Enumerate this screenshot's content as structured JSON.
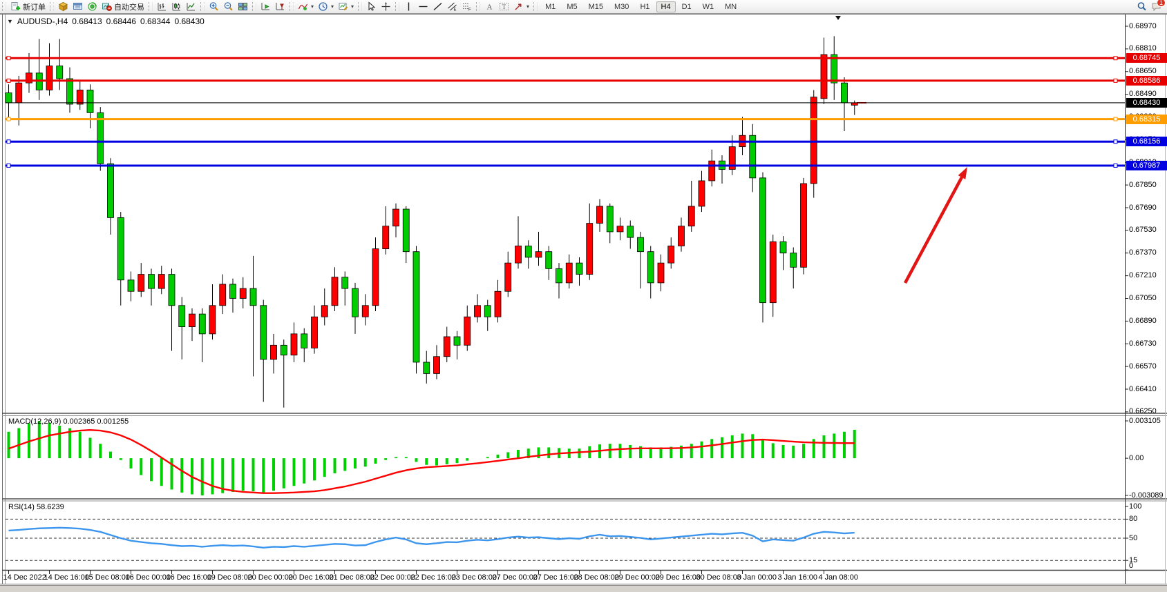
{
  "toolbar": {
    "new_order_label": "新订单",
    "auto_trading_label": "自动交易",
    "timeframes": [
      "M1",
      "M5",
      "M15",
      "M30",
      "H1",
      "H4",
      "D1",
      "W1",
      "MN"
    ],
    "active_timeframe": "H4",
    "notification_badge": "1"
  },
  "chart_header": {
    "symbol": "AUDUSD-,H4",
    "open": "0.68413",
    "high": "0.68446",
    "low": "0.68344",
    "close": "0.68430"
  },
  "price_axis": {
    "ticks": [
      "0.68970",
      "0.68810",
      "0.68650",
      "0.68490",
      "0.68330",
      "0.68170",
      "0.68010",
      "0.67850",
      "0.67690",
      "0.67530",
      "0.67370",
      "0.67210",
      "0.67050",
      "0.66890",
      "0.66730",
      "0.66570",
      "0.66410",
      "0.66250"
    ]
  },
  "time_axis": {
    "labels": [
      "14 Dec 2022",
      "14 Dec 16:00",
      "15 Dec 08:00",
      "16 Dec 00:00",
      "16 Dec 16:00",
      "19 Dec 08:00",
      "20 Dec 00:00",
      "20 Dec 16:00",
      "21 Dec 08:00",
      "22 Dec 00:00",
      "22 Dec 16:00",
      "23 Dec 08:00",
      "27 Dec 00:00",
      "27 Dec 16:00",
      "28 Dec 08:00",
      "29 Dec 00:00",
      "29 Dec 16:00",
      "30 Dec 08:00",
      "3 Jan 00:00",
      "3 Jan 16:00",
      "4 Jan 08:00"
    ]
  },
  "hlines": [
    {
      "label": "0.68745",
      "value": 0.68745,
      "color": "#e80000",
      "kind": "resistance"
    },
    {
      "label": "0.68586",
      "value": 0.68586,
      "color": "#e80000",
      "kind": "resistance"
    },
    {
      "label": "0.68430",
      "value": 0.6843,
      "color": "#000000",
      "kind": "current-price"
    },
    {
      "label": "0.68315",
      "value": 0.68315,
      "color": "#ff9c00",
      "kind": "level"
    },
    {
      "label": "0.68156",
      "value": 0.68156,
      "color": "#0000e0",
      "kind": "support"
    },
    {
      "label": "0.67987",
      "value": 0.67987,
      "color": "#0000e0",
      "kind": "support"
    }
  ],
  "annotations": {
    "arrow": {
      "color": "#e21414",
      "direction": "up-right"
    }
  },
  "indicators": {
    "macd": {
      "label": "MACD(12,26,9)",
      "values": "0.002365 0.001255",
      "axis": [
        "0.003105",
        "0.00",
        "-0.003089"
      ]
    },
    "rsi": {
      "label": "RSI(14)",
      "value": "58.6239",
      "axis": [
        "100",
        "80",
        "50",
        "15",
        "0"
      ]
    }
  },
  "chart_data": {
    "type": "candlestick",
    "symbol": "AUDUSD",
    "timeframe": "H4",
    "title": "AUDUSD-,H4",
    "y_range": [
      0.6625,
      0.6897
    ],
    "grid": false,
    "colors": {
      "up": "#ff0000",
      "down": "#00cd00",
      "wick": "#000000",
      "macd_histogram": "#00d000",
      "macd_signal": "#ff0000",
      "rsi_line": "#3d96ee"
    },
    "x_labels": [
      "14 Dec 2022",
      "14 Dec 16:00",
      "15 Dec 08:00",
      "16 Dec 00:00",
      "16 Dec 16:00",
      "19 Dec 08:00",
      "20 Dec 00:00",
      "20 Dec 16:00",
      "21 Dec 08:00",
      "22 Dec 00:00",
      "22 Dec 16:00",
      "23 Dec 08:00",
      "27 Dec 00:00",
      "27 Dec 16:00",
      "28 Dec 08:00",
      "29 Dec 00:00",
      "29 Dec 16:00",
      "30 Dec 08:00",
      "3 Jan 00:00",
      "3 Jan 16:00",
      "4 Jan 08:00"
    ],
    "candles_per_label": 4,
    "ohlc": [
      [
        0.685,
        0.6856,
        0.683,
        0.6843
      ],
      [
        0.6843,
        0.6862,
        0.6827,
        0.6857
      ],
      [
        0.6857,
        0.6878,
        0.685,
        0.6864
      ],
      [
        0.6864,
        0.6888,
        0.6845,
        0.6852
      ],
      [
        0.6852,
        0.6885,
        0.6848,
        0.6869
      ],
      [
        0.6869,
        0.6888,
        0.6852,
        0.686
      ],
      [
        0.686,
        0.6868,
        0.6836,
        0.6842
      ],
      [
        0.6842,
        0.6858,
        0.6838,
        0.6852
      ],
      [
        0.6852,
        0.6856,
        0.6825,
        0.6836
      ],
      [
        0.6836,
        0.684,
        0.6795,
        0.68
      ],
      [
        0.68,
        0.6804,
        0.675,
        0.6762
      ],
      [
        0.6762,
        0.6766,
        0.67,
        0.6718
      ],
      [
        0.6718,
        0.6724,
        0.6703,
        0.671
      ],
      [
        0.671,
        0.673,
        0.6706,
        0.6722
      ],
      [
        0.6722,
        0.6726,
        0.67,
        0.6712
      ],
      [
        0.6712,
        0.6728,
        0.6708,
        0.6722
      ],
      [
        0.6722,
        0.6726,
        0.6668,
        0.67
      ],
      [
        0.67,
        0.6706,
        0.6662,
        0.6685
      ],
      [
        0.6685,
        0.6698,
        0.6675,
        0.6694
      ],
      [
        0.6694,
        0.6698,
        0.666,
        0.668
      ],
      [
        0.668,
        0.6715,
        0.6676,
        0.67
      ],
      [
        0.67,
        0.6722,
        0.6694,
        0.6715
      ],
      [
        0.6715,
        0.6719,
        0.6695,
        0.6705
      ],
      [
        0.6705,
        0.672,
        0.6698,
        0.6712
      ],
      [
        0.6712,
        0.6735,
        0.665,
        0.67
      ],
      [
        0.67,
        0.6704,
        0.6632,
        0.6662
      ],
      [
        0.6662,
        0.668,
        0.6652,
        0.6672
      ],
      [
        0.6672,
        0.6676,
        0.6628,
        0.6665
      ],
      [
        0.6665,
        0.6688,
        0.666,
        0.668
      ],
      [
        0.668,
        0.6684,
        0.666,
        0.667
      ],
      [
        0.667,
        0.67,
        0.6666,
        0.6692
      ],
      [
        0.6692,
        0.6712,
        0.6686,
        0.67
      ],
      [
        0.67,
        0.6727,
        0.6696,
        0.672
      ],
      [
        0.672,
        0.6724,
        0.67,
        0.6712
      ],
      [
        0.6712,
        0.6716,
        0.668,
        0.6692
      ],
      [
        0.6692,
        0.6708,
        0.6686,
        0.67
      ],
      [
        0.67,
        0.6748,
        0.6696,
        0.674
      ],
      [
        0.674,
        0.677,
        0.6736,
        0.6756
      ],
      [
        0.6756,
        0.6772,
        0.6748,
        0.6768
      ],
      [
        0.6768,
        0.677,
        0.673,
        0.6738
      ],
      [
        0.6738,
        0.6742,
        0.6652,
        0.666
      ],
      [
        0.666,
        0.6668,
        0.6645,
        0.6652
      ],
      [
        0.6652,
        0.6672,
        0.6648,
        0.6664
      ],
      [
        0.6664,
        0.6685,
        0.666,
        0.6678
      ],
      [
        0.6678,
        0.6682,
        0.6662,
        0.6672
      ],
      [
        0.6672,
        0.67,
        0.6668,
        0.6692
      ],
      [
        0.6692,
        0.6708,
        0.6688,
        0.67
      ],
      [
        0.67,
        0.6704,
        0.6682,
        0.6692
      ],
      [
        0.6692,
        0.6718,
        0.6688,
        0.671
      ],
      [
        0.671,
        0.6738,
        0.6706,
        0.673
      ],
      [
        0.673,
        0.6763,
        0.6726,
        0.6742
      ],
      [
        0.6742,
        0.6746,
        0.6726,
        0.6734
      ],
      [
        0.6734,
        0.6752,
        0.6728,
        0.6738
      ],
      [
        0.6738,
        0.6742,
        0.6718,
        0.6726
      ],
      [
        0.6726,
        0.673,
        0.6705,
        0.6716
      ],
      [
        0.6716,
        0.6736,
        0.6712,
        0.673
      ],
      [
        0.673,
        0.6734,
        0.6714,
        0.6722
      ],
      [
        0.6722,
        0.6772,
        0.6718,
        0.6758
      ],
      [
        0.6758,
        0.6775,
        0.6752,
        0.677
      ],
      [
        0.677,
        0.6772,
        0.6744,
        0.6752
      ],
      [
        0.6752,
        0.6762,
        0.6746,
        0.6756
      ],
      [
        0.6756,
        0.676,
        0.674,
        0.6748
      ],
      [
        0.6748,
        0.6752,
        0.6712,
        0.6738
      ],
      [
        0.6738,
        0.6742,
        0.6705,
        0.6716
      ],
      [
        0.6716,
        0.6736,
        0.671,
        0.673
      ],
      [
        0.673,
        0.6748,
        0.6726,
        0.6742
      ],
      [
        0.6742,
        0.6762,
        0.6738,
        0.6756
      ],
      [
        0.6756,
        0.6788,
        0.6752,
        0.677
      ],
      [
        0.677,
        0.6795,
        0.6766,
        0.6788
      ],
      [
        0.6788,
        0.681,
        0.6784,
        0.6802
      ],
      [
        0.6802,
        0.6806,
        0.6786,
        0.6796
      ],
      [
        0.6796,
        0.682,
        0.6792,
        0.6812
      ],
      [
        0.6812,
        0.6833,
        0.6806,
        0.682
      ],
      [
        0.682,
        0.6828,
        0.678,
        0.679
      ],
      [
        0.679,
        0.6794,
        0.6688,
        0.6702
      ],
      [
        0.6702,
        0.675,
        0.6692,
        0.6745
      ],
      [
        0.6745,
        0.6749,
        0.6725,
        0.6737
      ],
      [
        0.6737,
        0.6741,
        0.6712,
        0.6727
      ],
      [
        0.6727,
        0.679,
        0.6722,
        0.6786
      ],
      [
        0.6786,
        0.6852,
        0.6776,
        0.6847
      ],
      [
        0.6846,
        0.6889,
        0.6842,
        0.6877
      ],
      [
        0.6877,
        0.689,
        0.6845,
        0.6857
      ],
      [
        0.6857,
        0.6861,
        0.6823,
        0.6843
      ],
      [
        0.68413,
        0.68446,
        0.68344,
        0.6843
      ]
    ],
    "hlines": [
      0.68745,
      0.68586,
      0.6843,
      0.68315,
      0.68156,
      0.67987
    ],
    "macd": {
      "params": "12,26,9",
      "current_main": 0.002365,
      "current_signal": 0.001255,
      "range": [
        -0.003089,
        0.003105
      ],
      "scale": 0.001,
      "histogram": [
        2.2,
        2.5,
        2.9,
        3.105,
        2.95,
        2.7,
        2.5,
        2.2,
        1.7,
        1.2,
        0.55,
        -0.15,
        -0.85,
        -1.4,
        -1.9,
        -2.3,
        -2.6,
        -2.85,
        -3.0,
        -3.089,
        -3.0,
        -2.9,
        -2.8,
        -2.7,
        -2.75,
        -2.85,
        -2.7,
        -2.5,
        -2.3,
        -2.1,
        -1.85,
        -1.55,
        -1.25,
        -1.05,
        -0.85,
        -0.7,
        -0.45,
        -0.15,
        0.1,
        0.1,
        -0.3,
        -0.55,
        -0.6,
        -0.5,
        -0.4,
        -0.2,
        0.0,
        0.1,
        0.3,
        0.5,
        0.7,
        0.8,
        0.9,
        0.9,
        0.85,
        0.8,
        0.8,
        1.0,
        1.15,
        1.2,
        1.2,
        1.1,
        1.0,
        0.9,
        0.9,
        0.95,
        1.05,
        1.2,
        1.4,
        1.6,
        1.75,
        1.9,
        2.05,
        2.0,
        1.5,
        1.25,
        1.1,
        1.05,
        1.2,
        1.6,
        1.9,
        2.05,
        2.2,
        2.365
      ],
      "signal": [
        0.8,
        1.1,
        1.4,
        1.65,
        1.9,
        2.05,
        2.2,
        2.3,
        2.35,
        2.3,
        2.15,
        1.9,
        1.55,
        1.1,
        0.6,
        0.05,
        -0.5,
        -1.05,
        -1.55,
        -1.95,
        -2.3,
        -2.55,
        -2.7,
        -2.8,
        -2.85,
        -2.9,
        -2.9,
        -2.88,
        -2.85,
        -2.8,
        -2.75,
        -2.65,
        -2.5,
        -2.35,
        -2.15,
        -1.95,
        -1.7,
        -1.45,
        -1.2,
        -1.0,
        -0.85,
        -0.75,
        -0.7,
        -0.65,
        -0.6,
        -0.5,
        -0.42,
        -0.32,
        -0.22,
        -0.1,
        0.0,
        0.12,
        0.22,
        0.32,
        0.4,
        0.45,
        0.5,
        0.55,
        0.62,
        0.7,
        0.76,
        0.8,
        0.82,
        0.82,
        0.82,
        0.83,
        0.85,
        0.9,
        0.97,
        1.07,
        1.18,
        1.3,
        1.42,
        1.52,
        1.55,
        1.5,
        1.44,
        1.38,
        1.33,
        1.3,
        1.28,
        1.27,
        1.26,
        1.255
      ]
    },
    "rsi": {
      "period": 14,
      "current": 58.6239,
      "range": [
        0,
        100
      ],
      "levels": [
        80,
        50,
        15
      ],
      "values": [
        62,
        63,
        64.5,
        65.5,
        66,
        66.5,
        66,
        65,
        63,
        60,
        55,
        50,
        46,
        44,
        42,
        41,
        39,
        37.5,
        38,
        36.5,
        38,
        39,
        38,
        38.5,
        37,
        35,
        36.5,
        36,
        37.5,
        36.5,
        38,
        39.5,
        41,
        40.5,
        38.5,
        39,
        44,
        48,
        51,
        48,
        42,
        40.5,
        42,
        44,
        43.5,
        46,
        47.5,
        46.5,
        48.5,
        51,
        52.5,
        51,
        51.5,
        50,
        48.5,
        50,
        49,
        53,
        55.5,
        53,
        53.5,
        52,
        50.5,
        48,
        49.5,
        51,
        52.5,
        54,
        55.5,
        57,
        56,
        57.5,
        58.5,
        54,
        45,
        48,
        47,
        46,
        51,
        57,
        60,
        59,
        57.5,
        58.6
      ]
    }
  }
}
